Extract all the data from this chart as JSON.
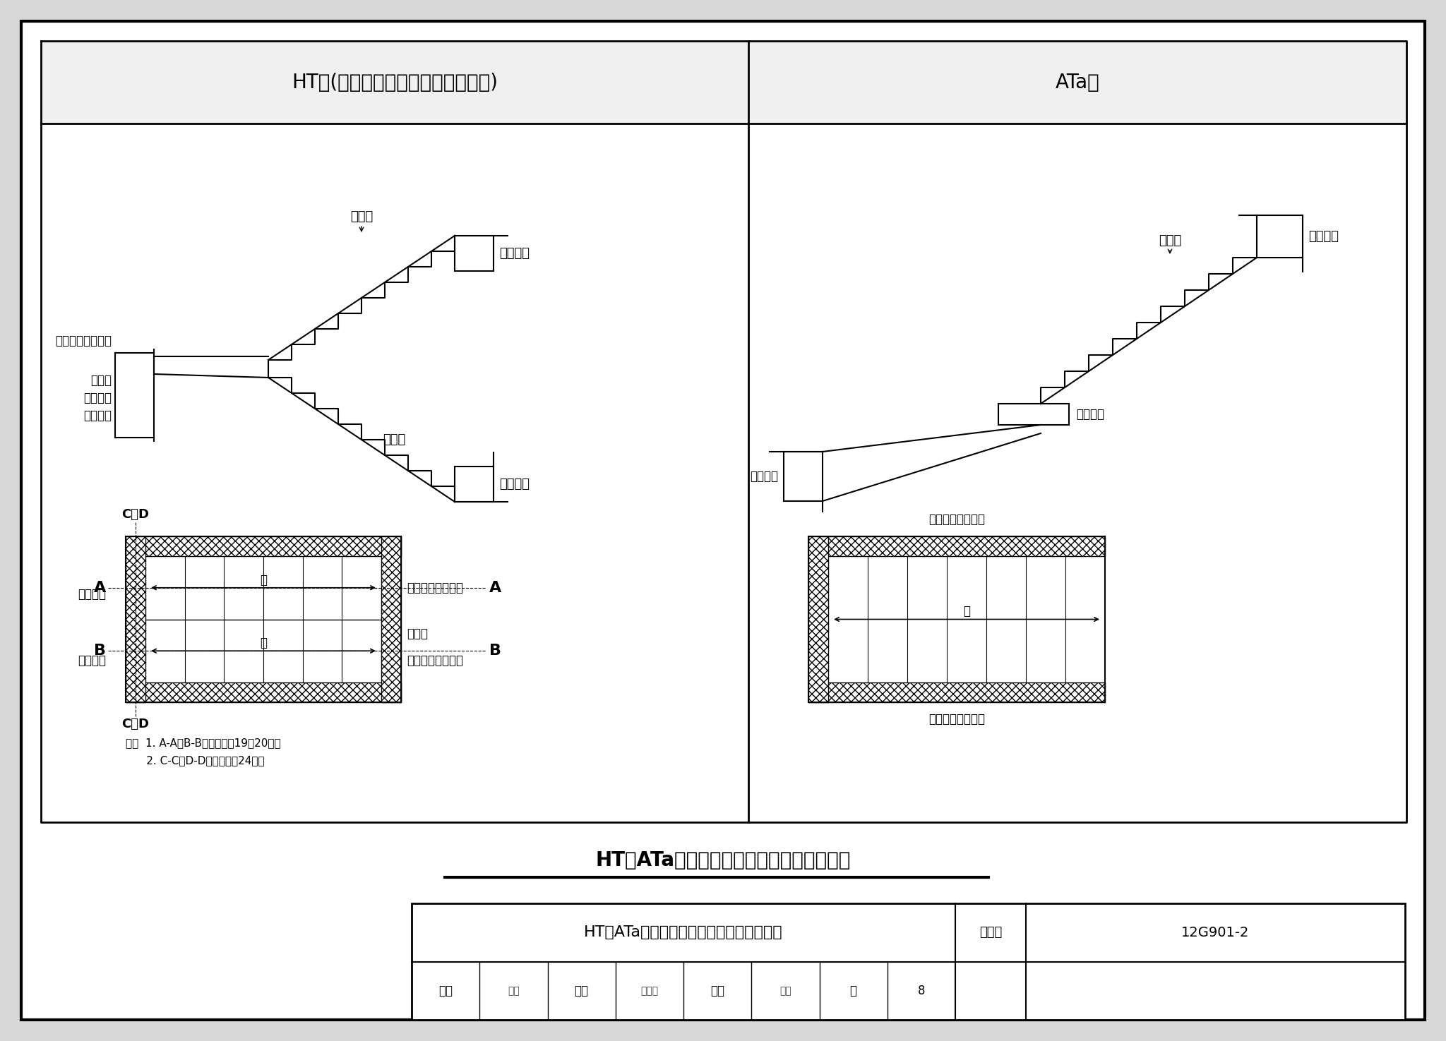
{
  "bg_color": "#d8d8d8",
  "page_bg": "#ffffff",
  "tc": "#000000",
  "title_ht": "HT型(有层间和楼层平板的双跑梯板)",
  "title_ata": "ATa型",
  "title_main": "HT、ATa型楼梯截面形状与支座位置示意图",
  "lbl_bbd1": "踏步段",
  "lbl_llj1": "楼层梯梁",
  "lbl_sbzc": "三边支承层间平板",
  "lbl_llj2": "楼层梯梁",
  "lbl_cjl": "层间梁",
  "lbl_hjlq": "或剪力墙",
  "lbl_hqtz": "或砌体墙",
  "lbl_bbd2": "踏步段",
  "lbl_CD_top": "C、D",
  "lbl_CD_bot": "C、D",
  "lbl_A_l": "A",
  "lbl_A_r": "A",
  "lbl_B_l": "B",
  "lbl_B_r": "B",
  "lbl_cjpb": "层间平板",
  "lbl_sbzs": "三边支座",
  "lbl_llj_zbzs1": "楼层梯梁单边支座",
  "lbl_syc": "上一层",
  "lbl_llj_zbzs2": "楼层梯梁单边支座",
  "lbl_note1": "注：  1. A-A、B-B详本图集第19、20页。",
  "lbl_note2": "      2. C-C、D-D详本图集第24页。",
  "lbl_gdlj": "高端梯梁",
  "lbl_bbd_ata": "踏步段",
  "lbl_hdzs": "滑动支座",
  "lbl_ddlj": "低端梯梁",
  "lbl_gdzbzs": "梯板高端单边支座",
  "lbl_ddzbzs": "梯板低端单边支座",
  "tbl_title": "HT、ATa型楼梯截面形状与支座位置示意图",
  "tbl_tujiji": "图集号",
  "tbl_tujiji_val": "12G901-2",
  "tbl_shen": "审核",
  "tbl_shen_name": "詹谊",
  "tbl_jiao": "校对",
  "tbl_jiao_name": "冯海悦",
  "tbl_she": "设计",
  "tbl_she_name": "刘敏",
  "tbl_ye": "页",
  "tbl_ye_val": "8"
}
